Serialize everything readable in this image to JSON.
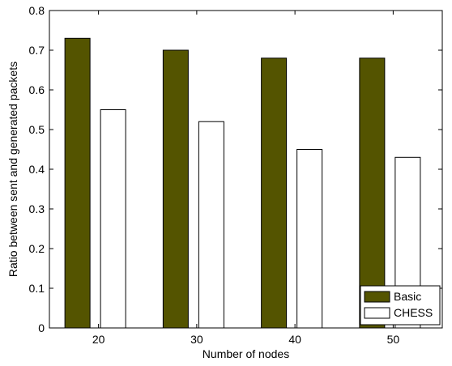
{
  "chart_data": {
    "type": "bar",
    "title": "",
    "xlabel": "Number of nodes",
    "ylabel": "Ratio between sent and generated packets",
    "categories": [
      "20",
      "30",
      "40",
      "50"
    ],
    "ylim": [
      0,
      0.8
    ],
    "yticks": [
      0,
      0.1,
      0.2,
      0.3,
      0.4,
      0.5,
      0.6,
      0.7,
      0.8
    ],
    "ytick_labels": [
      "0",
      "0.1",
      "0.2",
      "0.3",
      "0.4",
      "0.5",
      "0.6",
      "0.7",
      "0.8"
    ],
    "grid": false,
    "legend_position": "bottom-right",
    "series": [
      {
        "name": "Basic",
        "values": [
          0.73,
          0.7,
          0.68,
          0.68
        ],
        "color": "#545400"
      },
      {
        "name": "CHESS",
        "values": [
          0.55,
          0.52,
          0.45,
          0.43
        ],
        "color": "#ffffff"
      }
    ]
  }
}
